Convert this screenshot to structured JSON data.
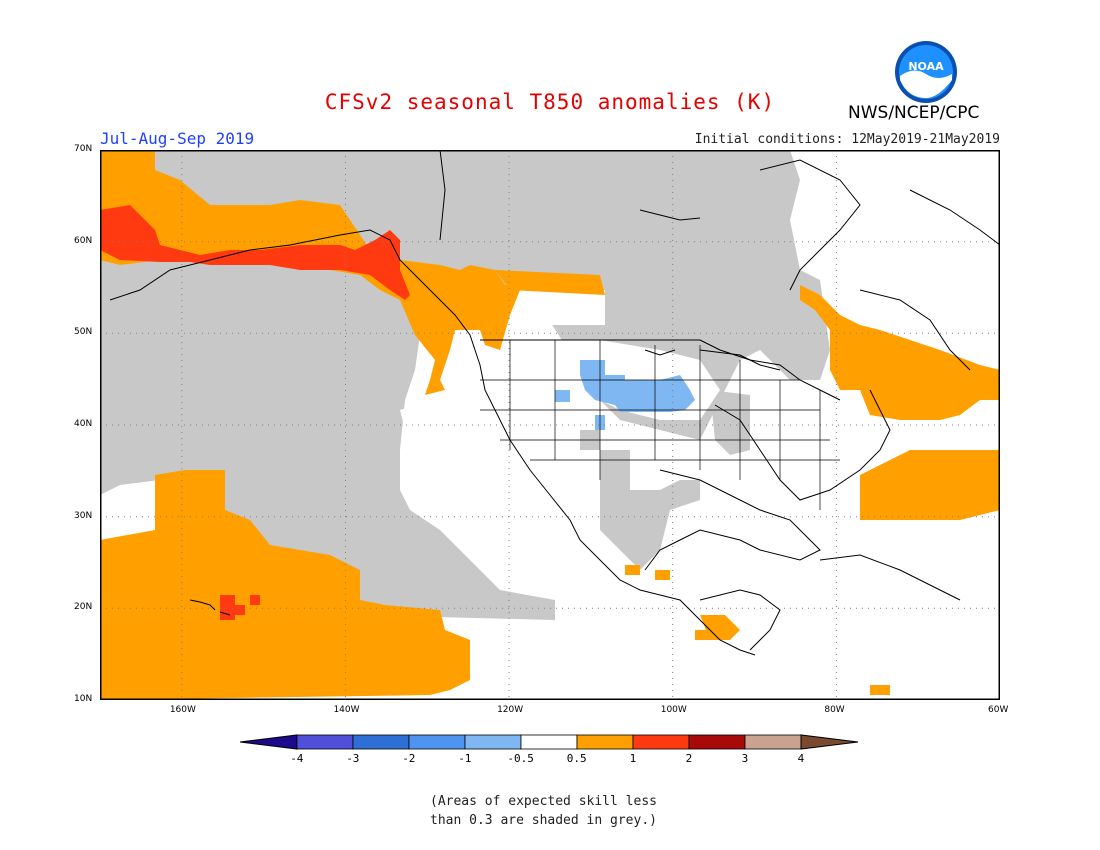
{
  "title": "CFSv2 seasonal T850 anomalies (K)",
  "season": "Jul-Aug-Sep 2019",
  "initial_conditions": "Initial conditions: 12May2019-21May2019",
  "agency": "NWS/NCEP/CPC",
  "logo_text": "NOAA",
  "footnote": {
    "line1": "(Areas of expected skill less",
    "line2": "than 0.3 are shaded in grey.)"
  },
  "lat_ticks": [
    {
      "value": 70,
      "label": "70N"
    },
    {
      "value": 60,
      "label": "60N"
    },
    {
      "value": 50,
      "label": "50N"
    },
    {
      "value": 40,
      "label": "40N"
    },
    {
      "value": 30,
      "label": "30N"
    },
    {
      "value": 20,
      "label": "20N"
    },
    {
      "value": 10,
      "label": "10N"
    }
  ],
  "lon_ticks": [
    {
      "value": -160,
      "label": "160W"
    },
    {
      "value": -140,
      "label": "140W"
    },
    {
      "value": -120,
      "label": "120W"
    },
    {
      "value": -100,
      "label": "100W"
    },
    {
      "value": -80,
      "label": "80W"
    },
    {
      "value": -60,
      "label": "60W"
    }
  ],
  "map_extent": {
    "lon": [
      -170,
      -60
    ],
    "lat": [
      10,
      70
    ]
  },
  "colorbar": {
    "labels": [
      "-4",
      "-3",
      "-2",
      "-1",
      "-0.5",
      "0.5",
      "1",
      "2",
      "3",
      "4"
    ],
    "colors": [
      "#3d1fb0",
      "#4f4fd9",
      "#2e6fd6",
      "#4f94f0",
      "#7fb7f2",
      "#ffffff",
      "#ffa000",
      "#ff3a10",
      "#a80a0a",
      "#c9a38f",
      "#7a4a30"
    ],
    "low_end_color": "#1c0a8a",
    "high_end_color": "#7a4a30"
  },
  "colors": {
    "grey_skill": "#c8c8c8",
    "orange": "#ffa000",
    "red_orange": "#ff3a10",
    "light_blue": "#7fb7f2"
  }
}
